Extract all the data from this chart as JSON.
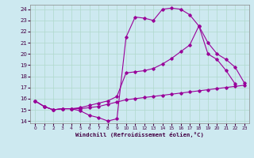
{
  "xlabel": "Windchill (Refroidissement éolien,°C)",
  "xlim": [
    -0.5,
    23.5
  ],
  "ylim": [
    13.8,
    24.4
  ],
  "xticks": [
    0,
    1,
    2,
    3,
    4,
    5,
    6,
    7,
    8,
    9,
    10,
    11,
    12,
    13,
    14,
    15,
    16,
    17,
    18,
    19,
    20,
    21,
    22,
    23
  ],
  "yticks": [
    14,
    15,
    16,
    17,
    18,
    19,
    20,
    21,
    22,
    23,
    24
  ],
  "bg_color": "#cde9f0",
  "line_color": "#990099",
  "grid_color": "#b0d8cc",
  "line1_x": [
    0,
    1,
    2,
    3,
    4,
    5,
    6,
    7,
    8,
    9,
    10,
    11,
    12,
    13,
    14,
    15,
    16,
    17,
    18,
    19,
    20,
    21,
    22
  ],
  "line1_y": [
    15.8,
    15.3,
    15.0,
    15.1,
    15.1,
    14.9,
    14.5,
    14.3,
    14.0,
    14.2,
    21.5,
    23.3,
    23.2,
    23.0,
    24.0,
    24.1,
    24.0,
    23.5,
    22.5,
    20.0,
    19.5,
    18.5,
    17.3
  ],
  "line2_x": [
    0,
    1,
    2,
    3,
    4,
    5,
    6,
    7,
    8,
    9,
    10,
    11,
    12,
    13,
    14,
    15,
    16,
    17,
    18,
    19,
    20,
    21,
    22,
    23
  ],
  "line2_y": [
    15.8,
    15.3,
    15.0,
    15.1,
    15.1,
    15.1,
    15.2,
    15.3,
    15.5,
    15.7,
    15.9,
    16.0,
    16.1,
    16.2,
    16.3,
    16.4,
    16.5,
    16.6,
    16.7,
    16.8,
    16.9,
    17.0,
    17.1,
    17.2
  ],
  "line3_x": [
    0,
    1,
    2,
    3,
    4,
    5,
    6,
    7,
    8,
    9,
    10,
    11,
    12,
    13,
    14,
    15,
    16,
    17,
    18,
    19,
    20,
    21,
    22,
    23
  ],
  "line3_y": [
    15.8,
    15.3,
    15.0,
    15.1,
    15.1,
    15.2,
    15.4,
    15.6,
    15.8,
    16.2,
    18.3,
    18.4,
    18.5,
    18.7,
    19.1,
    19.6,
    20.2,
    20.8,
    22.5,
    21.0,
    20.0,
    19.5,
    18.8,
    17.4
  ]
}
